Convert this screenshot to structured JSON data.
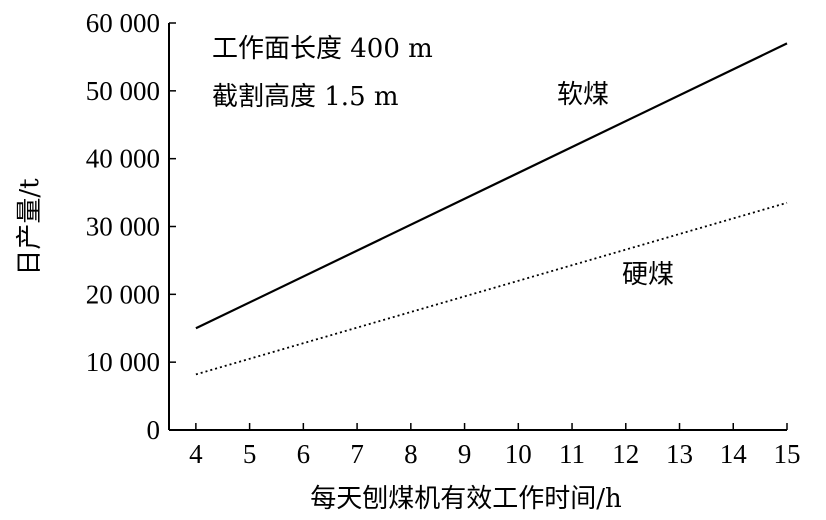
{
  "chart_data": {
    "type": "line",
    "title": "",
    "xlabel": "每天刨煤机有效工作时间/h",
    "ylabel": "日产量/t",
    "x_ticks": [
      "4",
      "5",
      "6",
      "7",
      "8",
      "9",
      "10",
      "11",
      "12",
      "13",
      "14",
      "15"
    ],
    "y_ticks": [
      "0",
      "10 000",
      "20 000",
      "30 000",
      "40 000",
      "50 000",
      "60 000"
    ],
    "xlim": [
      3.5,
      15
    ],
    "ylim": [
      0,
      60000
    ],
    "grid": false,
    "annotations": [
      "工作面长度 400 m",
      "截割高度 1.5 m"
    ],
    "series": [
      {
        "name": "软煤",
        "x": [
          4,
          15
        ],
        "y": [
          15000,
          57000
        ],
        "style": "solid",
        "color": "#000000"
      },
      {
        "name": "硬煤",
        "x": [
          4,
          15
        ],
        "y": [
          8200,
          33500
        ],
        "style": "dotted",
        "color": "#000000"
      }
    ]
  }
}
